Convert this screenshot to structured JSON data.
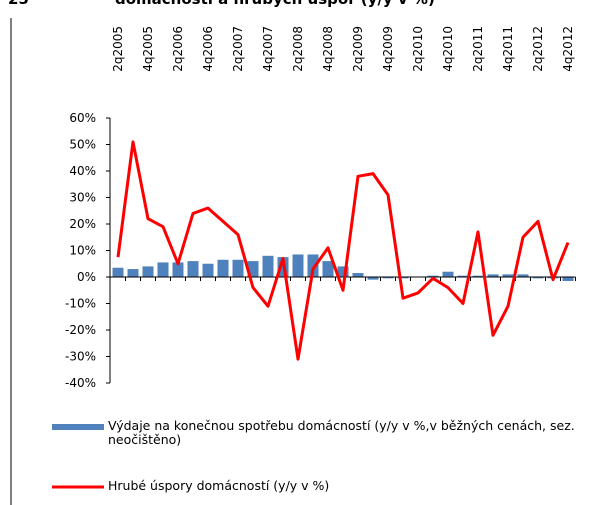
{
  "chart_data": {
    "type": "bar-line",
    "figure_number": "25",
    "title": "domácností a hrubých úspor (y/y v %)",
    "categories": [
      "2q2005",
      null,
      "4q2005",
      null,
      "2q2006",
      null,
      "4q2006",
      null,
      "2q2007",
      null,
      "4q2007",
      null,
      "2q2008",
      null,
      "4q2008",
      null,
      "2q2009",
      null,
      "4q2009",
      null,
      "2q2010",
      null,
      "4q2010",
      null,
      "2q2011",
      null,
      "4q2011",
      null,
      "2q2012",
      null,
      "4q2012"
    ],
    "series": [
      {
        "name": "Výdaje na konečnou spotřebu domácností (y/y v %,v běžných cenách, sez. neočištěno)",
        "type": "bar",
        "color": "#4f81bd",
        "values": [
          3.5,
          3,
          4,
          5.5,
          5.5,
          6,
          5,
          6.5,
          6.5,
          6,
          8,
          7.5,
          8.5,
          8.5,
          6,
          4,
          1.5,
          -1,
          -0.5,
          -0.5,
          0,
          0.5,
          2,
          0.5,
          0.5,
          1,
          1,
          1,
          -0.5,
          -0.5,
          -1.5
        ]
      },
      {
        "name": "Hrubé úspory domácností (y/y v %)",
        "type": "line",
        "color": "#ff0000",
        "values": [
          7.5,
          51,
          22,
          19,
          5,
          24,
          26,
          21,
          16,
          -4,
          -11,
          7,
          -31,
          3,
          11,
          -5,
          38,
          39,
          31,
          -8,
          -6,
          -0.5,
          -4,
          -10,
          17,
          -22,
          -11,
          15,
          21,
          -1,
          13
        ]
      }
    ],
    "ylim": [
      -40,
      60
    ],
    "yticks": [
      {
        "value": 60,
        "label": "60%"
      },
      {
        "value": 50,
        "label": "50%"
      },
      {
        "value": 40,
        "label": "40%"
      },
      {
        "value": 30,
        "label": "30%"
      },
      {
        "value": 20,
        "label": "20%"
      },
      {
        "value": 10,
        "label": "10%"
      },
      {
        "value": 0,
        "label": "0%"
      },
      {
        "value": -10,
        "label": "-10%"
      },
      {
        "value": -20,
        "label": "-20%"
      },
      {
        "value": -30,
        "label": "-30%"
      },
      {
        "value": -40,
        "label": "-40%"
      }
    ],
    "grid": false
  }
}
